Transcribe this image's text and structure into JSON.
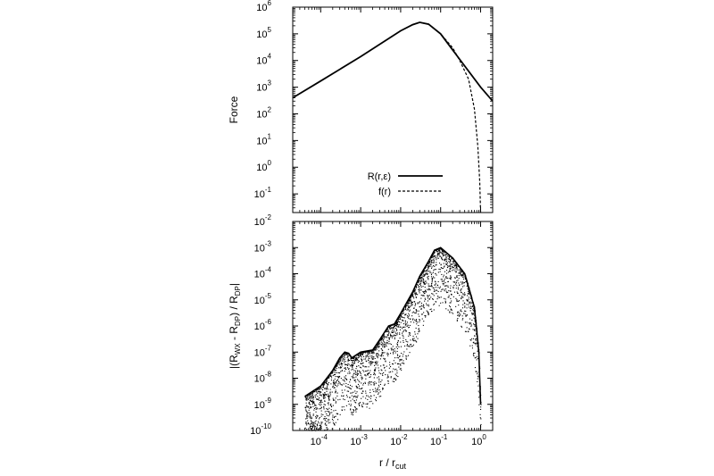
{
  "chart_data": [
    {
      "type": "line",
      "ylabel": "Force",
      "xscale": "log",
      "yscale": "log",
      "xlim": [
        2e-05,
        2
      ],
      "ylim": [
        0.02,
        1000000
      ],
      "xticks": [
        {
          "v": 0.0001,
          "base": "10",
          "exp": "-4"
        },
        {
          "v": 0.001,
          "base": "10",
          "exp": "-3"
        },
        {
          "v": 0.01,
          "base": "10",
          "exp": "-2"
        },
        {
          "v": 0.1,
          "base": "10",
          "exp": "-1"
        },
        {
          "v": 1,
          "base": "10",
          "exp": "0"
        }
      ],
      "yticks": [
        {
          "v": 0.1,
          "base": "10",
          "exp": "-1"
        },
        {
          "v": 1,
          "base": "10",
          "exp": "0"
        },
        {
          "v": 10,
          "base": "10",
          "exp": "1"
        },
        {
          "v": 100,
          "base": "10",
          "exp": "2"
        },
        {
          "v": 1000,
          "base": "10",
          "exp": "3"
        },
        {
          "v": 10000,
          "base": "10",
          "exp": "4"
        },
        {
          "v": 100000,
          "base": "10",
          "exp": "5"
        },
        {
          "v": 1000000,
          "base": "10",
          "exp": "6"
        }
      ],
      "legend_position": "bottom-left",
      "series": [
        {
          "name": "R(r,ε)",
          "style": "solid",
          "x": [
            2e-05,
            0.0001,
            0.001,
            0.01,
            0.02,
            0.03,
            0.05,
            0.1,
            0.3,
            1,
            2
          ],
          "y": [
            400,
            1700,
            14000,
            130000,
            220000,
            270000,
            230000,
            100000,
            11000,
            1000,
            300
          ]
        },
        {
          "name": "f(r)",
          "style": "dashed",
          "x": [
            2e-05,
            0.0001,
            0.001,
            0.01,
            0.02,
            0.03,
            0.05,
            0.1,
            0.2,
            0.3,
            0.5,
            0.7,
            0.85,
            0.95,
            1.0
          ],
          "y": [
            400,
            1700,
            14000,
            130000,
            220000,
            270000,
            230000,
            100000,
            30000,
            10000,
            2000,
            150,
            6,
            0.3,
            0.02
          ]
        }
      ]
    },
    {
      "type": "scatter",
      "ylabel": "|(R_WX - R_DP)| / R_DP",
      "ylabel_parts": {
        "open": "|(R",
        "sub1": "WX",
        "mid": " - R",
        "sub2": "DP",
        "close": ") / R",
        "sub3": "DP",
        "end": "|"
      },
      "xlabel": "r/r_cut",
      "xlabel_parts": {
        "main": "r / r",
        "sub": "cut"
      },
      "xscale": "log",
      "yscale": "log",
      "xlim": [
        2e-05,
        2
      ],
      "ylim": [
        1e-10,
        0.01
      ],
      "xticks": [
        {
          "v": 0.0001,
          "base": "10",
          "exp": "-4"
        },
        {
          "v": 0.001,
          "base": "10",
          "exp": "-3"
        },
        {
          "v": 0.01,
          "base": "10",
          "exp": "-2"
        },
        {
          "v": 0.1,
          "base": "10",
          "exp": "-1"
        },
        {
          "v": 1,
          "base": "10",
          "exp": "0"
        }
      ],
      "yticks": [
        {
          "v": 1e-10,
          "base": "10",
          "exp": "-10"
        },
        {
          "v": 1e-09,
          "base": "10",
          "exp": "-9"
        },
        {
          "v": 1e-08,
          "base": "10",
          "exp": "-8"
        },
        {
          "v": 1e-07,
          "base": "10",
          "exp": "-7"
        },
        {
          "v": 1e-06,
          "base": "10",
          "exp": "-6"
        },
        {
          "v": 1e-05,
          "base": "10",
          "exp": "-5"
        },
        {
          "v": 0.0001,
          "base": "10",
          "exp": "-4"
        },
        {
          "v": 0.001,
          "base": "10",
          "exp": "-3"
        },
        {
          "v": 0.01,
          "base": "10",
          "exp": "-2"
        }
      ],
      "envelope": {
        "x": [
          4e-05,
          0.0001,
          0.0002,
          0.0003,
          0.0004,
          0.0005,
          0.0006,
          0.001,
          0.002,
          0.003,
          0.005,
          0.007,
          0.01,
          0.02,
          0.03,
          0.05,
          0.07,
          0.1,
          0.2,
          0.4,
          0.7,
          0.9,
          1.0
        ],
        "y": [
          2e-09,
          5e-09,
          2e-08,
          6e-08,
          1e-07,
          9e-08,
          6e-08,
          1e-07,
          1.2e-07,
          3e-07,
          1e-06,
          1.2e-06,
          3e-06,
          2e-05,
          8e-05,
          0.0003,
          0.0008,
          0.001,
          0.0004,
          0.0001,
          5e-06,
          1e-07,
          1e-09
        ]
      }
    }
  ]
}
